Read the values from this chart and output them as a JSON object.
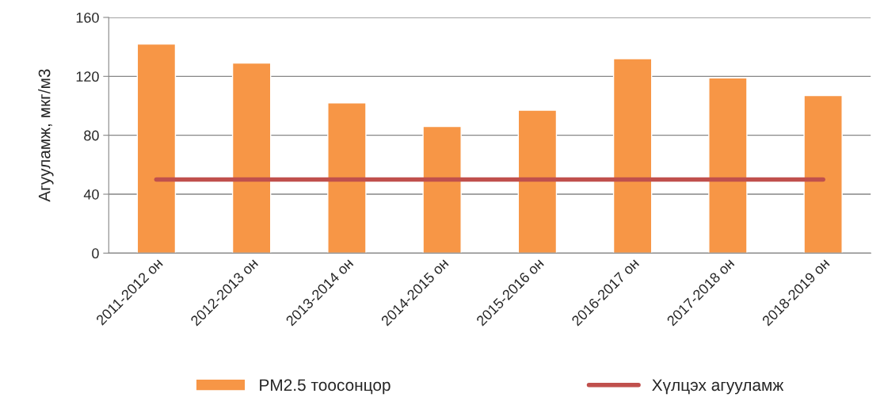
{
  "chart_data": {
    "type": "bar",
    "ylabel": "Агууламж, мкг/м3",
    "categories": [
      "2011-2012 он",
      "2012-2013 он",
      "2013-2014 он",
      "2014-2015 он",
      "2015-2016 он",
      "2016-2017 он",
      "2017-2018 он",
      "2018-2019 он"
    ],
    "series": [
      {
        "name": "PM2.5 тоосонцор",
        "color": "#f79646",
        "values": [
          142,
          129,
          102,
          86,
          97,
          132,
          119,
          107
        ]
      },
      {
        "name": "Хүлцэх агууламж",
        "type": "line",
        "color": "#c0504d",
        "values": [
          50,
          50,
          50,
          50,
          50,
          50,
          50,
          50
        ]
      }
    ],
    "ylim": [
      0,
      160
    ],
    "yticks": [
      0,
      40,
      80,
      120,
      160
    ],
    "grid": "y",
    "legend": "bottom"
  }
}
